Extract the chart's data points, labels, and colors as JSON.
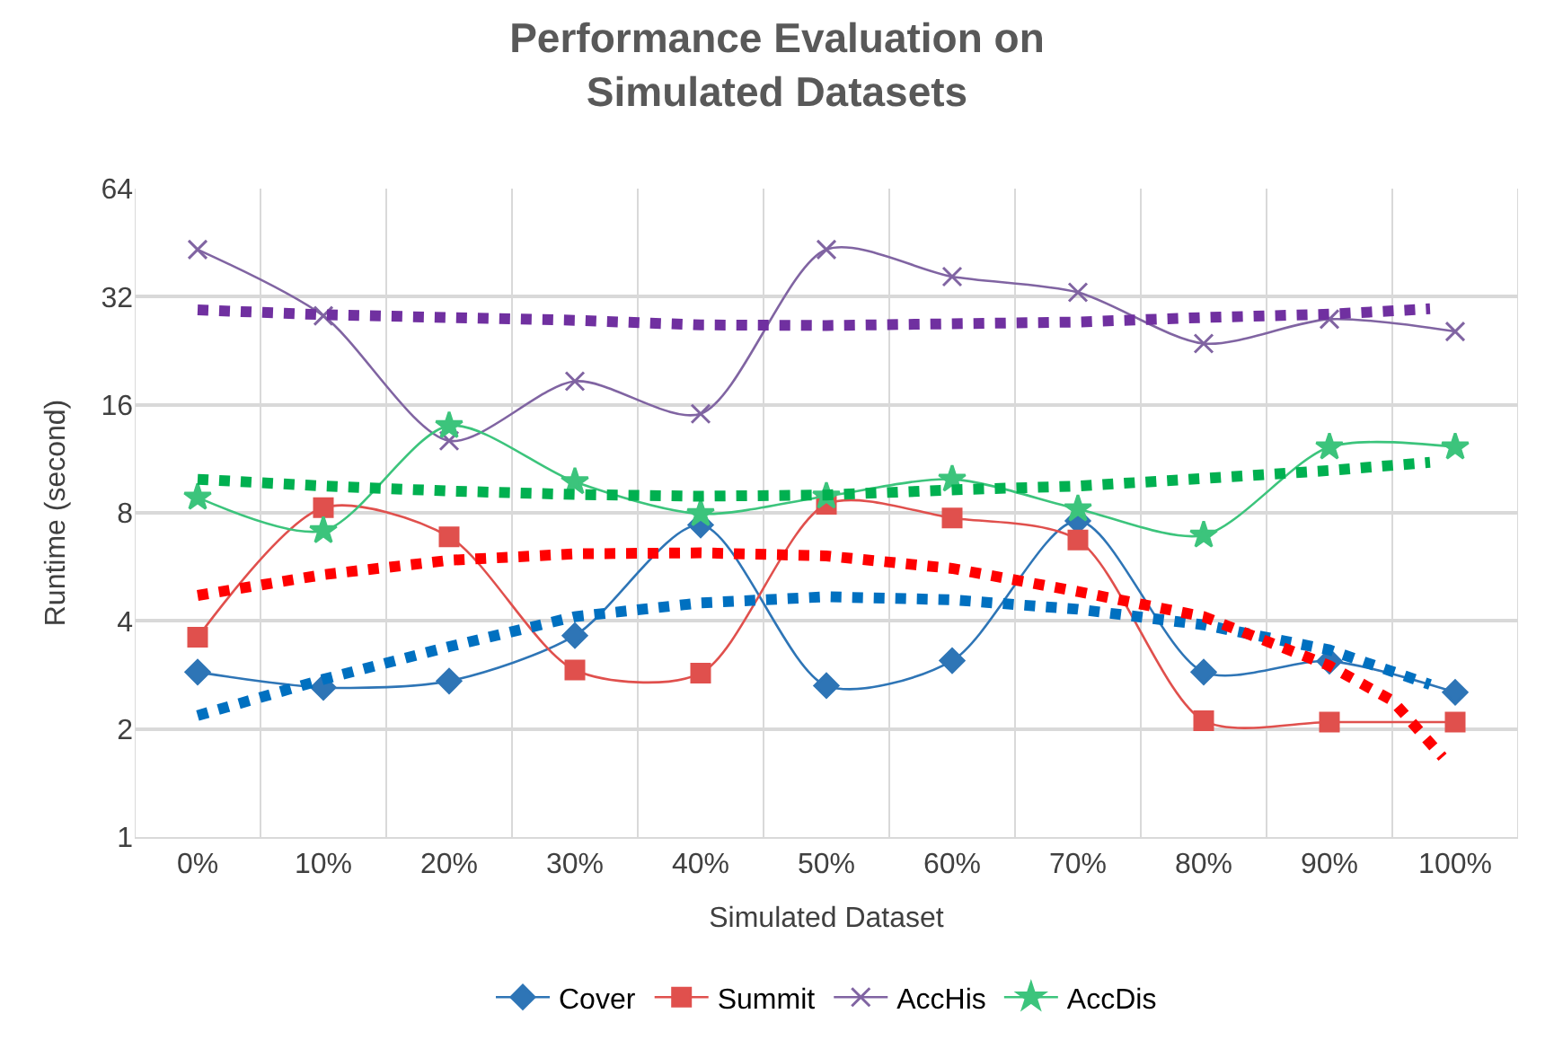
{
  "chart_data": {
    "type": "line",
    "title": "Performance Evaluation on\nSimulated Datasets",
    "xlabel": "Simulated Dataset",
    "ylabel": "Runtime (second)",
    "x": [
      0,
      10,
      20,
      30,
      40,
      50,
      60,
      70,
      80,
      90,
      100
    ],
    "xlim": [
      -5,
      105
    ],
    "xticks": [
      {
        "value": -5,
        "label": null
      },
      {
        "value": 0,
        "label": "0%"
      },
      {
        "value": 5,
        "label": null
      },
      {
        "value": 10,
        "label": "10%"
      },
      {
        "value": 15,
        "label": null
      },
      {
        "value": 20,
        "label": "20%"
      },
      {
        "value": 25,
        "label": null
      },
      {
        "value": 30,
        "label": "30%"
      },
      {
        "value": 35,
        "label": null
      },
      {
        "value": 40,
        "label": "40%"
      },
      {
        "value": 45,
        "label": null
      },
      {
        "value": 50,
        "label": "50%"
      },
      {
        "value": 55,
        "label": null
      },
      {
        "value": 60,
        "label": "60%"
      },
      {
        "value": 65,
        "label": null
      },
      {
        "value": 70,
        "label": "70%"
      },
      {
        "value": 75,
        "label": null
      },
      {
        "value": 80,
        "label": "80%"
      },
      {
        "value": 85,
        "label": null
      },
      {
        "value": 90,
        "label": "90%"
      },
      {
        "value": 95,
        "label": null
      },
      {
        "value": 100,
        "label": "100%"
      },
      {
        "value": 105,
        "label": null
      }
    ],
    "log": "y",
    "ylim": [
      1,
      64
    ],
    "yticks": [
      1,
      2,
      4,
      8,
      16,
      32,
      64
    ],
    "grid": true,
    "legend": "bottom",
    "series": [
      {
        "name": "Cover",
        "color": "#2e75b6",
        "marker": "diamond",
        "values": [
          2.88,
          2.61,
          2.72,
          3.64,
          7.4,
          2.64,
          3.1,
          7.6,
          2.88,
          3.09,
          2.53
        ]
      },
      {
        "name": "Summit",
        "color": "#e0504d",
        "marker": "square",
        "values": [
          3.6,
          8.27,
          6.86,
          2.92,
          2.86,
          8.45,
          7.74,
          6.72,
          2.11,
          2.09,
          2.09
        ]
      },
      {
        "name": "AccHis",
        "color": "#8064a2",
        "marker": "cross",
        "values": [
          43.3,
          28.3,
          12.7,
          18.6,
          15.1,
          43.3,
          36.4,
          32.9,
          23.7,
          27.7,
          25.6
        ]
      },
      {
        "name": "AccDis",
        "color": "#3cc47c",
        "marker": "star",
        "values": [
          8.83,
          7.13,
          13.98,
          9.76,
          7.95,
          8.9,
          9.92,
          8.2,
          6.93,
          12.2,
          12.2
        ]
      },
      {
        "color": "#0070c0",
        "line_style": "dotted",
        "marker": "none",
        "x": [
          0,
          10,
          20,
          30,
          40,
          50,
          60,
          70,
          80,
          90,
          98
        ],
        "values": [
          2.18,
          2.75,
          3.39,
          4.11,
          4.49,
          4.67,
          4.58,
          4.31,
          3.9,
          3.32,
          2.66
        ]
      },
      {
        "color": "#ff0000",
        "line_style": "dotted",
        "marker": "none",
        "x": [
          0,
          10,
          20,
          30,
          40,
          50,
          60,
          70,
          80,
          90,
          95,
          99
        ],
        "values": [
          4.71,
          5.38,
          5.9,
          6.15,
          6.19,
          6.07,
          5.6,
          4.83,
          4.11,
          3.0,
          2.4,
          1.67
        ]
      },
      {
        "color": "#7030a0",
        "line_style": "dotted",
        "marker": "none",
        "x": [
          0,
          10,
          20,
          30,
          40,
          50,
          60,
          70,
          80,
          90,
          98
        ],
        "values": [
          29.4,
          28.5,
          28.0,
          27.5,
          26.7,
          26.6,
          26.9,
          27.2,
          28.0,
          28.6,
          29.6
        ]
      },
      {
        "color": "#00b050",
        "line_style": "dotted",
        "marker": "none",
        "x": [
          0,
          10,
          20,
          30,
          40,
          50,
          60,
          70,
          80,
          90,
          98
        ],
        "values": [
          9.92,
          9.5,
          9.2,
          9.0,
          8.9,
          8.97,
          9.27,
          9.5,
          9.97,
          10.5,
          11.06
        ]
      }
    ]
  }
}
